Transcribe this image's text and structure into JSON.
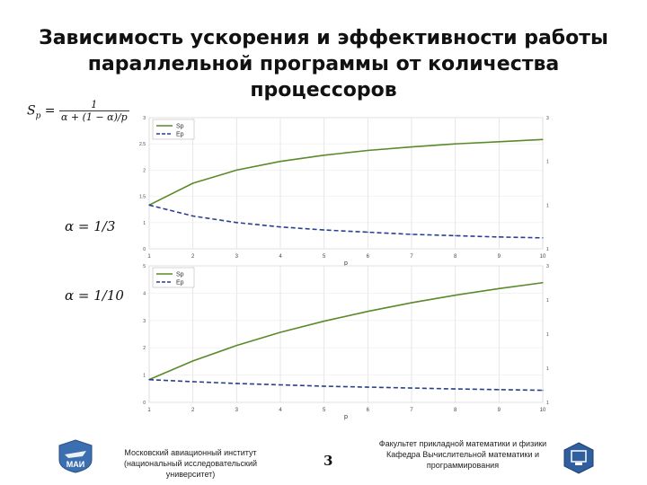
{
  "title": {
    "line1": "Зависимость ускорения и эффективности работы",
    "line2": "параллельной программы от количества",
    "line3": "процессоров"
  },
  "formula": {
    "lhs": "S",
    "sub": "p",
    "eq": " = ",
    "num": "1",
    "den": "α + (1 − α)/p"
  },
  "alpha_labels": {
    "first": "α = 1/3",
    "second": "α = 1/10"
  },
  "colon": ":",
  "chart_data": [
    {
      "type": "line",
      "x": [
        1,
        2,
        3,
        4,
        5,
        6,
        7,
        8,
        9,
        10
      ],
      "xlabel": "p",
      "xlim": [
        1,
        10
      ],
      "ylim": [
        0,
        3
      ],
      "x_ticks": [
        "1",
        "2",
        "3",
        "4",
        "5",
        "6",
        "7",
        "8",
        "9",
        "10"
      ],
      "y_ticks_left": [
        "0",
        "1",
        "1.5",
        "2",
        "2.5",
        "3"
      ],
      "y_ticks_right": [
        "1",
        "1",
        "1",
        "3"
      ],
      "legend": "top-left",
      "series": [
        {
          "name": "Sp",
          "color": "#5a8a2a",
          "dash": "solid",
          "values": [
            1.0,
            1.5,
            1.8,
            2.0,
            2.14,
            2.25,
            2.33,
            2.4,
            2.45,
            2.5
          ]
        },
        {
          "name": "Ep",
          "color": "#2a3f8f",
          "dash": "dashed",
          "values": [
            1.0,
            0.75,
            0.6,
            0.5,
            0.43,
            0.38,
            0.33,
            0.3,
            0.27,
            0.25
          ]
        }
      ]
    },
    {
      "type": "line",
      "x": [
        1,
        2,
        3,
        4,
        5,
        6,
        7,
        8,
        9,
        10
      ],
      "xlabel": "p",
      "xlim": [
        1,
        10
      ],
      "ylim": [
        0,
        6
      ],
      "x_ticks": [
        "1",
        "2",
        "3",
        "4",
        "5",
        "6",
        "7",
        "8",
        "9",
        "10"
      ],
      "y_ticks_left": [
        "0",
        "1",
        "2",
        "3",
        "4",
        "5"
      ],
      "y_ticks_right": [
        "1",
        "1",
        "1",
        "1",
        "3"
      ],
      "legend": "top-left",
      "series": [
        {
          "name": "Sp",
          "color": "#5a8a2a",
          "dash": "solid",
          "values": [
            1.0,
            1.82,
            2.5,
            3.08,
            3.57,
            4.0,
            4.38,
            4.71,
            5.0,
            5.26
          ]
        },
        {
          "name": "Ep",
          "color": "#2a3f8f",
          "dash": "dashed",
          "values": [
            1.0,
            0.91,
            0.83,
            0.77,
            0.71,
            0.67,
            0.63,
            0.59,
            0.56,
            0.53
          ]
        }
      ]
    }
  ],
  "footer": {
    "left_line1": "Московский авиационный институт",
    "left_line2": "(национальный исследовательский университет)",
    "page": "3",
    "right_line1": "Факультет прикладной математики и физики",
    "right_line2": "Кафедра Вычислительной математики и",
    "right_line3": "программирования",
    "logo_text": "МАИ"
  }
}
